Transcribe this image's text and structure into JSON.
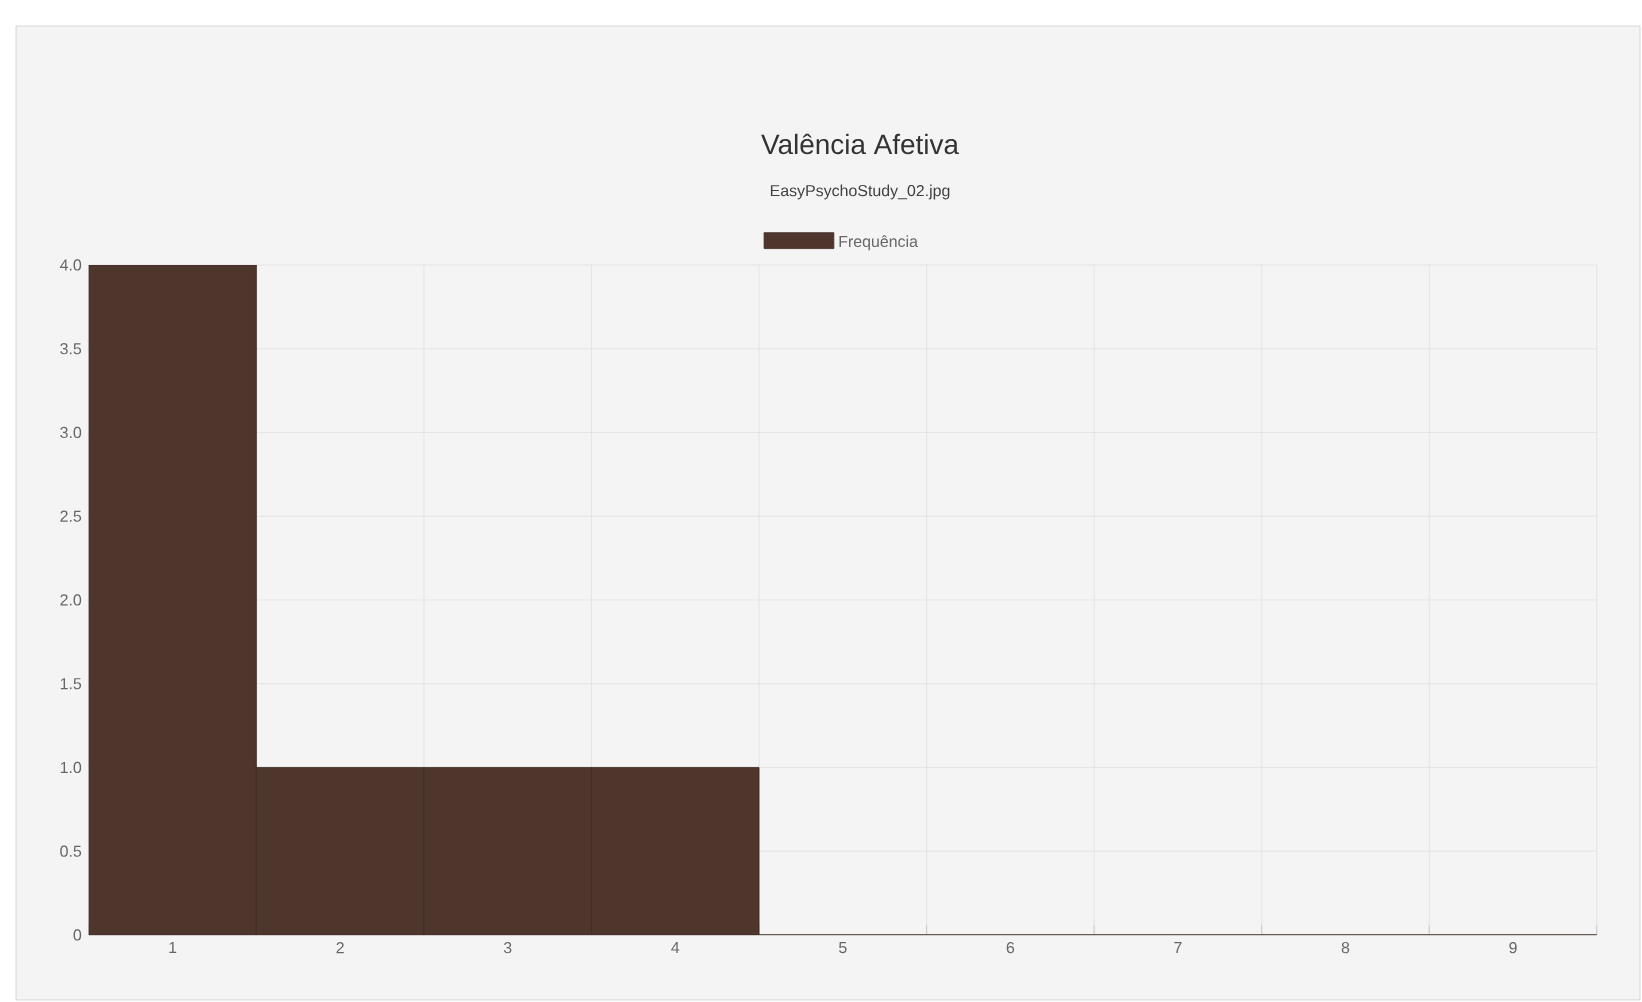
{
  "chart_data": {
    "type": "bar",
    "title": "Valência Afetiva",
    "subtitle": "EasyPsychoStudy_02.jpg",
    "categories": [
      "1",
      "2",
      "3",
      "4",
      "5",
      "6",
      "7",
      "8",
      "9"
    ],
    "series": [
      {
        "name": "Frequência",
        "color": "#4e362c",
        "values": [
          4,
          1,
          1,
          1,
          0,
          0,
          0,
          0,
          0
        ]
      }
    ],
    "ylim": [
      0,
      4
    ],
    "yticks": [
      0,
      0.5,
      {
        "value": 1,
        "label": "1.0"
      },
      1.5,
      {
        "value": 2,
        "label": "2.0"
      },
      2.5,
      {
        "value": 3,
        "label": "3.0"
      },
      3.5,
      {
        "value": 4,
        "label": "4.0"
      }
    ],
    "grid": true,
    "legend": "top"
  }
}
